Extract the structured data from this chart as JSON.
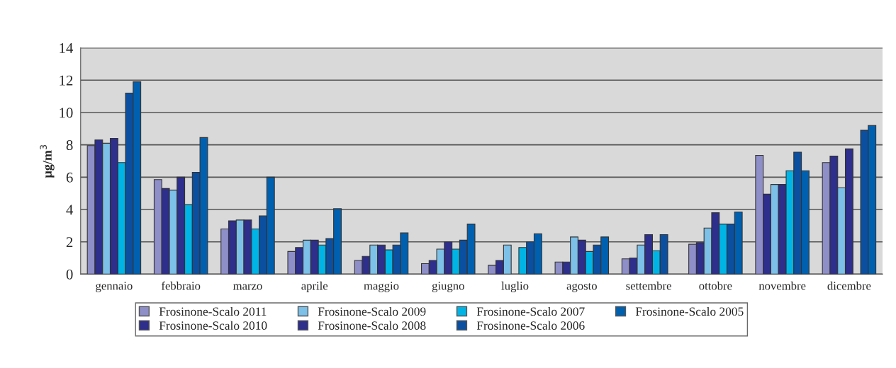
{
  "chart_data": {
    "type": "bar",
    "ylabel": "µg/m$^{3}$",
    "categories": [
      "gennaio",
      "febbraio",
      "marzo",
      "aprile",
      "maggio",
      "giugno",
      "luglio",
      "agosto",
      "settembre",
      "ottobre",
      "novembre",
      "dicembre"
    ],
    "series": [
      {
        "name": "Frosinone-Scalo 2011",
        "color": "#8e8ec8",
        "values": [
          7.95,
          5.85,
          2.8,
          1.4,
          0.85,
          0.65,
          0.55,
          0.75,
          0.95,
          1.85,
          7.35,
          6.9
        ]
      },
      {
        "name": "Frosinone-Scalo 2010",
        "color": "#2e2e8c",
        "values": [
          8.3,
          5.3,
          3.3,
          1.65,
          1.1,
          0.85,
          0.85,
          0.75,
          1.0,
          1.95,
          4.95,
          7.3
        ]
      },
      {
        "name": "Frosinone-Scalo 2009",
        "color": "#7dc0e8",
        "values": [
          8.1,
          5.2,
          3.35,
          2.1,
          1.8,
          1.55,
          1.8,
          2.3,
          1.8,
          2.85,
          5.55,
          5.35
        ]
      },
      {
        "name": "Frosinone-Scalo 2008",
        "color": "#2e2e8c",
        "values": [
          8.4,
          6.0,
          3.35,
          2.1,
          1.8,
          2.0,
          null,
          2.1,
          2.45,
          3.8,
          5.55,
          7.75
        ]
      },
      {
        "name": "Frosinone-Scalo 2007",
        "color": "#00b4e6",
        "values": [
          6.9,
          4.3,
          2.8,
          1.8,
          1.5,
          1.55,
          1.65,
          1.4,
          1.45,
          3.1,
          6.4,
          null
        ]
      },
      {
        "name": "Frosinone-Scalo 2006",
        "color": "#0b4fa0",
        "values": [
          11.2,
          6.3,
          3.6,
          2.2,
          1.8,
          2.1,
          2.0,
          1.8,
          2.45,
          3.1,
          7.55,
          8.9
        ]
      },
      {
        "name": "Frosinone-Scalo 2005",
        "color": "#0060b0",
        "values": [
          11.9,
          8.45,
          6.0,
          4.05,
          2.55,
          3.1,
          2.5,
          2.3,
          null,
          3.85,
          6.4,
          9.2
        ]
      }
    ],
    "ylim": [
      0,
      14
    ],
    "yticks": [
      0,
      2,
      4,
      6,
      8,
      10,
      12,
      14
    ],
    "grid": "y",
    "legend": "bottom"
  }
}
